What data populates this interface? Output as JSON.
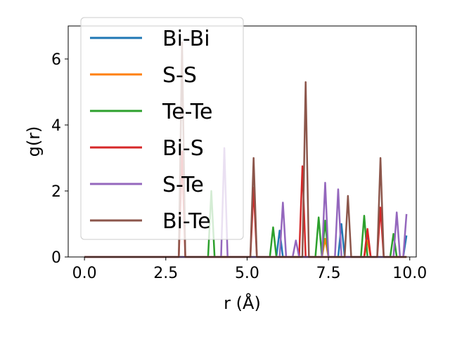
{
  "chart_data": {
    "type": "line",
    "xlabel": "r (Å)",
    "ylabel": "g(r)",
    "xlim": [
      -0.5,
      10.2
    ],
    "ylim": [
      0,
      7.0
    ],
    "xticks": [
      0.0,
      2.5,
      5.0,
      7.5,
      10.0
    ],
    "xtick_labels": [
      "0.0",
      "2.5",
      "5.0",
      "7.5",
      "10.0"
    ],
    "yticks": [
      0,
      2,
      4,
      6
    ],
    "ytick_labels": [
      "0",
      "2",
      "4",
      "6"
    ],
    "grid": false,
    "legend_position": "top-left",
    "series": [
      {
        "name": "Bi-Bi",
        "color": "#1f77b4",
        "x": [
          0,
          0.1,
          0.2,
          0.3,
          0.4,
          0.5,
          0.6,
          0.7,
          0.8,
          0.9,
          1,
          1.1,
          1.2,
          1.3,
          1.4,
          1.5,
          1.6,
          1.7,
          1.8,
          1.9,
          2,
          2.1,
          2.2,
          2.3,
          2.4,
          2.5,
          2.6,
          2.7,
          2.8,
          2.9,
          3,
          3.1,
          3.2,
          3.3,
          3.4,
          3.5,
          3.6,
          3.7,
          3.8,
          3.9,
          4,
          4.1,
          4.2,
          4.3,
          4.4,
          4.5,
          4.6,
          4.7,
          4.8,
          4.9,
          5,
          5.1,
          5.2,
          5.3,
          5.4,
          5.5,
          5.6,
          5.7,
          5.8,
          5.9,
          6,
          6.1,
          6.2,
          6.3,
          6.4,
          6.5,
          6.6,
          6.7,
          6.8,
          6.9,
          7,
          7.1,
          7.2,
          7.3,
          7.4,
          7.5,
          7.6,
          7.7,
          7.8,
          7.9,
          8,
          8.1,
          8.2,
          8.3,
          8.4,
          8.5,
          8.6,
          8.7,
          8.8,
          8.9,
          9,
          9.1,
          9.2,
          9.3,
          9.4,
          9.5,
          9.6,
          9.7,
          9.8,
          9.9
        ],
        "y": [
          0,
          0,
          0,
          0,
          0,
          0,
          0,
          0,
          0,
          0,
          0,
          0,
          0,
          0,
          0,
          0,
          0,
          0,
          0,
          0,
          0,
          0,
          0,
          0,
          0,
          0,
          0,
          0,
          0,
          0,
          0,
          0,
          0,
          0,
          0,
          0,
          0,
          0,
          0,
          0,
          0,
          0,
          0,
          0,
          0,
          0,
          0,
          0,
          0,
          0,
          0,
          0,
          0,
          0,
          0,
          0,
          0,
          0,
          0,
          0,
          0.8,
          0,
          0,
          0,
          0,
          0,
          0,
          0,
          0,
          0,
          0,
          0,
          0,
          0,
          0,
          0,
          0,
          0,
          0,
          1.0,
          0,
          0,
          0,
          0,
          0,
          0,
          0,
          0.6,
          0,
          0,
          0,
          0,
          0,
          0,
          0,
          0,
          0,
          0,
          0,
          0.65
        ]
      },
      {
        "name": "S-S",
        "color": "#ff7f0e",
        "x": [
          0,
          0.1,
          0.2,
          0.3,
          0.4,
          0.5,
          0.6,
          0.7,
          0.8,
          0.9,
          1,
          1.1,
          1.2,
          1.3,
          1.4,
          1.5,
          1.6,
          1.7,
          1.8,
          1.9,
          2,
          2.1,
          2.2,
          2.3,
          2.4,
          2.5,
          2.6,
          2.7,
          2.8,
          2.9,
          3,
          3.1,
          3.2,
          3.3,
          3.4,
          3.5,
          3.6,
          3.7,
          3.8,
          3.9,
          4,
          4.1,
          4.2,
          4.3,
          4.4,
          4.5,
          4.6,
          4.7,
          4.8,
          4.9,
          5,
          5.1,
          5.2,
          5.3,
          5.4,
          5.5,
          5.6,
          5.7,
          5.8,
          5.9,
          6,
          6.1,
          6.2,
          6.3,
          6.4,
          6.5,
          6.6,
          6.7,
          6.8,
          6.9,
          7,
          7.1,
          7.2,
          7.3,
          7.4,
          7.5,
          7.6,
          7.7,
          7.8,
          7.9,
          8,
          8.1,
          8.2,
          8.3,
          8.4,
          8.5,
          8.6,
          8.7,
          8.8,
          8.9,
          9,
          9.1,
          9.2,
          9.3,
          9.4,
          9.5,
          9.6,
          9.7,
          9.8,
          9.9
        ],
        "y": [
          0,
          0,
          0,
          0,
          0,
          0,
          0,
          0,
          0,
          0,
          0,
          0,
          0,
          0,
          0,
          0,
          0,
          0,
          0,
          0,
          0,
          0,
          0,
          0,
          0,
          0,
          0,
          0,
          0,
          0,
          0,
          0,
          0,
          0,
          0,
          0,
          0,
          0,
          0,
          0,
          0,
          0,
          0,
          0,
          0,
          0,
          0,
          0,
          0,
          0,
          0,
          0,
          0,
          0,
          0,
          0,
          0,
          0,
          0,
          0,
          0,
          0,
          0,
          0,
          0,
          0,
          0,
          0,
          0,
          0,
          0,
          0,
          0,
          0,
          0.55,
          0,
          0,
          0,
          0,
          0,
          0,
          0,
          0,
          0,
          0,
          0,
          0,
          0.5,
          0,
          0,
          0,
          0,
          0,
          0,
          0,
          0,
          0,
          0,
          0,
          0
        ]
      },
      {
        "name": "Te-Te",
        "color": "#2ca02c",
        "x": [
          0,
          0.1,
          0.2,
          0.3,
          0.4,
          0.5,
          0.6,
          0.7,
          0.8,
          0.9,
          1,
          1.1,
          1.2,
          1.3,
          1.4,
          1.5,
          1.6,
          1.7,
          1.8,
          1.9,
          2,
          2.1,
          2.2,
          2.3,
          2.4,
          2.5,
          2.6,
          2.7,
          2.8,
          2.9,
          3,
          3.1,
          3.2,
          3.3,
          3.4,
          3.5,
          3.6,
          3.7,
          3.8,
          3.9,
          4,
          4.1,
          4.2,
          4.3,
          4.4,
          4.5,
          4.6,
          4.7,
          4.8,
          4.9,
          5,
          5.1,
          5.2,
          5.3,
          5.4,
          5.5,
          5.6,
          5.7,
          5.8,
          5.9,
          6,
          6.1,
          6.2,
          6.3,
          6.4,
          6.5,
          6.6,
          6.7,
          6.8,
          6.9,
          7,
          7.1,
          7.2,
          7.3,
          7.4,
          7.5,
          7.6,
          7.7,
          7.8,
          7.9,
          8,
          8.1,
          8.2,
          8.3,
          8.4,
          8.5,
          8.6,
          8.7,
          8.8,
          8.9,
          9,
          9.1,
          9.2,
          9.3,
          9.4,
          9.5,
          9.6,
          9.7,
          9.8,
          9.9
        ],
        "y": [
          0,
          0,
          0,
          0,
          0,
          0,
          0,
          0,
          0,
          0,
          0,
          0,
          0,
          0,
          0,
          0,
          0,
          0,
          0,
          0,
          0,
          0,
          0,
          0,
          0,
          0,
          0,
          0,
          0,
          0,
          0,
          0,
          0,
          0,
          0,
          0,
          0,
          0,
          0,
          2.0,
          0,
          0,
          0,
          0,
          0,
          0,
          0,
          0,
          0,
          0,
          0,
          0,
          0,
          0,
          0,
          0,
          0,
          0,
          0.9,
          0,
          0,
          0,
          0,
          0,
          0,
          0,
          0,
          0,
          0,
          0,
          0,
          0,
          1.2,
          0,
          1.1,
          0,
          0,
          0,
          0,
          0,
          0,
          0,
          0,
          0,
          0,
          0,
          1.25,
          0,
          0,
          0,
          0,
          0,
          0,
          0,
          0,
          0.7,
          0,
          0,
          0,
          0
        ]
      },
      {
        "name": "Bi-S",
        "color": "#d62728",
        "x": [
          0,
          0.1,
          0.2,
          0.3,
          0.4,
          0.5,
          0.6,
          0.7,
          0.8,
          0.9,
          1,
          1.1,
          1.2,
          1.3,
          1.4,
          1.5,
          1.6,
          1.7,
          1.8,
          1.9,
          2,
          2.1,
          2.2,
          2.3,
          2.4,
          2.5,
          2.6,
          2.7,
          2.8,
          2.9,
          3,
          3.1,
          3.2,
          3.3,
          3.4,
          3.5,
          3.6,
          3.7,
          3.8,
          3.9,
          4,
          4.1,
          4.2,
          4.3,
          4.4,
          4.5,
          4.6,
          4.7,
          4.8,
          4.9,
          5,
          5.1,
          5.2,
          5.3,
          5.4,
          5.5,
          5.6,
          5.7,
          5.8,
          5.9,
          6,
          6.1,
          6.2,
          6.3,
          6.4,
          6.5,
          6.6,
          6.7,
          6.8,
          6.9,
          7,
          7.1,
          7.2,
          7.3,
          7.4,
          7.5,
          7.6,
          7.7,
          7.8,
          7.9,
          8,
          8.1,
          8.2,
          8.3,
          8.4,
          8.5,
          8.6,
          8.7,
          8.8,
          8.9,
          9,
          9.1,
          9.2,
          9.3,
          9.4,
          9.5,
          9.6,
          9.7,
          9.8,
          9.9
        ],
        "y": [
          0,
          0,
          0,
          0,
          0,
          0,
          0,
          0,
          0,
          0,
          0,
          0,
          0,
          0,
          0,
          0,
          0,
          0,
          0,
          0,
          0,
          0,
          0,
          0,
          0,
          0,
          0,
          0,
          0,
          0,
          3.2,
          0,
          0,
          0,
          0,
          0,
          0,
          0,
          0,
          0,
          0,
          0,
          0,
          0,
          0,
          0,
          0,
          0,
          0,
          0,
          0,
          0,
          2.1,
          0,
          0,
          0,
          0,
          0,
          0,
          0,
          0,
          0,
          0,
          0,
          0,
          0,
          0,
          2.75,
          0,
          0,
          0,
          0,
          0,
          0,
          0,
          0,
          0,
          0,
          0,
          0,
          0,
          0,
          0,
          0,
          0,
          0,
          0,
          0.85,
          0,
          0,
          0,
          1.5,
          0,
          0,
          0,
          0,
          0,
          0,
          0,
          0
        ]
      },
      {
        "name": "S-Te",
        "color": "#9467bd",
        "x": [
          0,
          0.1,
          0.2,
          0.3,
          0.4,
          0.5,
          0.6,
          0.7,
          0.8,
          0.9,
          1,
          1.1,
          1.2,
          1.3,
          1.4,
          1.5,
          1.6,
          1.7,
          1.8,
          1.9,
          2,
          2.1,
          2.2,
          2.3,
          2.4,
          2.5,
          2.6,
          2.7,
          2.8,
          2.9,
          3,
          3.1,
          3.2,
          3.3,
          3.4,
          3.5,
          3.6,
          3.7,
          3.8,
          3.9,
          4,
          4.1,
          4.2,
          4.3,
          4.4,
          4.5,
          4.6,
          4.7,
          4.8,
          4.9,
          5,
          5.1,
          5.2,
          5.3,
          5.4,
          5.5,
          5.6,
          5.7,
          5.8,
          5.9,
          6,
          6.1,
          6.2,
          6.3,
          6.4,
          6.5,
          6.6,
          6.7,
          6.8,
          6.9,
          7,
          7.1,
          7.2,
          7.3,
          7.4,
          7.5,
          7.6,
          7.7,
          7.8,
          7.9,
          8,
          8.1,
          8.2,
          8.3,
          8.4,
          8.5,
          8.6,
          8.7,
          8.8,
          8.9,
          9,
          9.1,
          9.2,
          9.3,
          9.4,
          9.5,
          9.6,
          9.7,
          9.8,
          9.9
        ],
        "y": [
          0,
          0,
          0,
          0,
          0,
          0,
          0,
          0,
          0,
          0,
          0,
          0,
          0,
          0,
          0,
          0,
          0,
          0,
          0,
          0,
          0,
          0,
          0,
          0,
          0,
          0,
          0,
          0,
          0,
          0,
          0,
          0,
          0,
          0,
          0,
          0,
          0,
          0,
          0,
          0,
          0,
          0,
          0,
          3.3,
          0,
          0,
          0,
          0,
          0,
          0,
          0,
          0,
          0,
          0,
          0,
          0,
          0,
          0,
          0,
          0,
          0,
          1.65,
          0,
          0,
          0,
          0.5,
          0,
          0,
          0,
          0,
          0,
          0,
          0,
          0,
          2.25,
          0,
          0,
          0,
          2.05,
          0,
          0,
          0,
          0,
          0,
          0,
          0,
          0,
          0,
          0,
          0,
          0,
          0,
          0,
          0,
          0,
          0,
          1.35,
          0,
          0,
          1.3
        ]
      },
      {
        "name": "Bi-Te",
        "color": "#8c564b",
        "x": [
          0,
          0.1,
          0.2,
          0.3,
          0.4,
          0.5,
          0.6,
          0.7,
          0.8,
          0.9,
          1,
          1.1,
          1.2,
          1.3,
          1.4,
          1.5,
          1.6,
          1.7,
          1.8,
          1.9,
          2,
          2.1,
          2.2,
          2.3,
          2.4,
          2.5,
          2.6,
          2.7,
          2.8,
          2.9,
          3,
          3.1,
          3.2,
          3.3,
          3.4,
          3.5,
          3.6,
          3.7,
          3.8,
          3.9,
          4,
          4.1,
          4.2,
          4.3,
          4.4,
          4.5,
          4.6,
          4.7,
          4.8,
          4.9,
          5,
          5.1,
          5.2,
          5.3,
          5.4,
          5.5,
          5.6,
          5.7,
          5.8,
          5.9,
          6,
          6.1,
          6.2,
          6.3,
          6.4,
          6.5,
          6.6,
          6.7,
          6.8,
          6.9,
          7,
          7.1,
          7.2,
          7.3,
          7.4,
          7.5,
          7.6,
          7.7,
          7.8,
          7.9,
          8,
          8.1,
          8.2,
          8.3,
          8.4,
          8.5,
          8.6,
          8.7,
          8.8,
          8.9,
          9,
          9.1,
          9.2,
          9.3,
          9.4,
          9.5,
          9.6,
          9.7,
          9.8,
          9.9
        ],
        "y": [
          0,
          0,
          0,
          0,
          0,
          0,
          0,
          0,
          0,
          0,
          0,
          0,
          0,
          0,
          0,
          0,
          0,
          0,
          0,
          0,
          0,
          0,
          0,
          0,
          0,
          0,
          0,
          0,
          0,
          0,
          6.5,
          0,
          0,
          0,
          0,
          0,
          0,
          0,
          0,
          0,
          0,
          0,
          0,
          0,
          0,
          0,
          0,
          0,
          0,
          0,
          0,
          0,
          3.0,
          0,
          0,
          0,
          0,
          0,
          0,
          0,
          0,
          0,
          0,
          0,
          0,
          0,
          0,
          0,
          5.3,
          0,
          0,
          0,
          0,
          0,
          0,
          0,
          0,
          0,
          0,
          0,
          0,
          1.85,
          0,
          0,
          0,
          0,
          0,
          0,
          0,
          0,
          0,
          3.0,
          0,
          0,
          0,
          0,
          0,
          0,
          0,
          0
        ]
      }
    ]
  }
}
